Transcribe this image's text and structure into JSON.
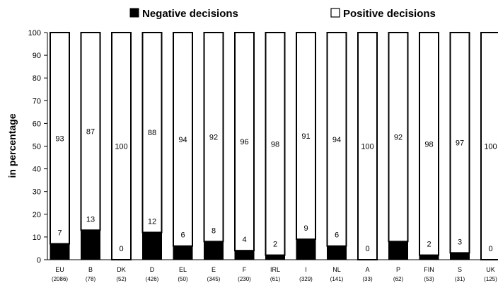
{
  "chart_data": {
    "type": "bar",
    "stacked": true,
    "ylabel": "in percentage",
    "ylim": [
      0,
      100
    ],
    "yticks": [
      0,
      10,
      20,
      30,
      40,
      50,
      60,
      70,
      80,
      90,
      100
    ],
    "grid": false,
    "legend_position": "top",
    "categories": [
      "EU",
      "B",
      "DK",
      "D",
      "EL",
      "E",
      "F",
      "IRL",
      "I",
      "NL",
      "A",
      "P",
      "FIN",
      "S",
      "UK"
    ],
    "category_counts": [
      "(2086)",
      "(78)",
      "(52)",
      "(426)",
      "(50)",
      "(345)",
      "(230)",
      "(61)",
      "(329)",
      "(141)",
      "(33)",
      "(62)",
      "(53)",
      "(31)",
      "(125)"
    ],
    "series": [
      {
        "name": "Negative decisions",
        "color": "#000000",
        "values": [
          7,
          13,
          0,
          12,
          6,
          8,
          4,
          2,
          9,
          6,
          0,
          8,
          2,
          3,
          0
        ],
        "labels": [
          "7",
          "13",
          "0",
          "12",
          "6",
          "8",
          "4",
          "2",
          "9",
          "6",
          "0",
          "",
          "2",
          "3",
          "0"
        ]
      },
      {
        "name": "Positive decisions",
        "color": "#ffffff",
        "values": [
          93,
          87,
          100,
          88,
          94,
          92,
          96,
          98,
          91,
          94,
          100,
          92,
          98,
          97,
          100
        ],
        "labels": [
          "93",
          "87",
          "100",
          "88",
          "94",
          "92",
          "96",
          "98",
          "91",
          "94",
          "100",
          "92",
          "98",
          "97",
          "100"
        ]
      }
    ]
  }
}
